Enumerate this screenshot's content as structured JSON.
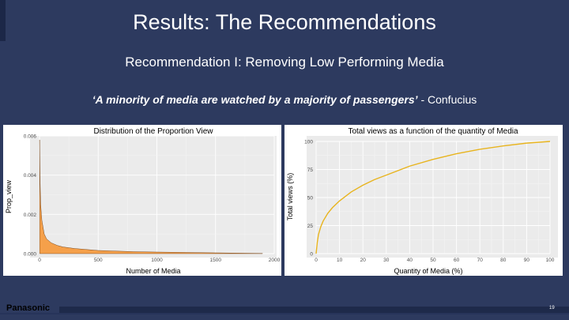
{
  "slide": {
    "title": "Results: The Recommendations",
    "subtitle": "Recommendation I: Removing Low Performing Media",
    "quote_text": "‘A minority of media are watched by a majority of passengers’",
    "quote_author": " - Confucius",
    "logo": "Panasonic",
    "page_number": "19"
  },
  "colors": {
    "background": "#2d3a5f",
    "area_fill": "#f5a04a",
    "line": "#e8b41e"
  },
  "chart_data": [
    {
      "type": "area",
      "title": "Distribution of the Proportion View",
      "xlabel": "Number of Media",
      "ylabel": "Prop_view",
      "xlim": [
        0,
        2000
      ],
      "ylim": [
        0,
        0.006
      ],
      "xticks": [
        "0",
        "500",
        "1000",
        "1500",
        "2000"
      ],
      "yticks": [
        "0.000",
        "0.002",
        "0.004",
        "0.006"
      ],
      "grid": true,
      "x": [
        1,
        5,
        10,
        20,
        40,
        60,
        100,
        150,
        200,
        300,
        500,
        800,
        1000,
        1500,
        1900
      ],
      "y": [
        0.0058,
        0.0036,
        0.0025,
        0.0017,
        0.001,
        0.00075,
        0.00055,
        0.00042,
        0.00034,
        0.00026,
        0.00016,
        0.0001,
        8e-05,
        4e-05,
        1e-05
      ]
    },
    {
      "type": "line",
      "title": "Total views as a function of the quantity of Media",
      "xlabel": "Quantity of Media (%)",
      "ylabel": "Total views (%)",
      "xlim": [
        0,
        100
      ],
      "ylim": [
        0,
        100
      ],
      "xticks": [
        "0",
        "10",
        "20",
        "30",
        "40",
        "50",
        "60",
        "70",
        "80",
        "90",
        "100"
      ],
      "yticks": [
        "0",
        "25",
        "50",
        "75",
        "100"
      ],
      "grid": true,
      "x": [
        0,
        0.5,
        1,
        2,
        3,
        5,
        7,
        10,
        15,
        20,
        25,
        30,
        40,
        50,
        60,
        70,
        80,
        90,
        100
      ],
      "y": [
        0,
        10,
        17,
        24,
        29,
        36,
        41,
        47,
        55,
        61,
        66,
        70,
        78,
        84,
        89,
        93,
        96,
        98.5,
        100
      ]
    }
  ]
}
